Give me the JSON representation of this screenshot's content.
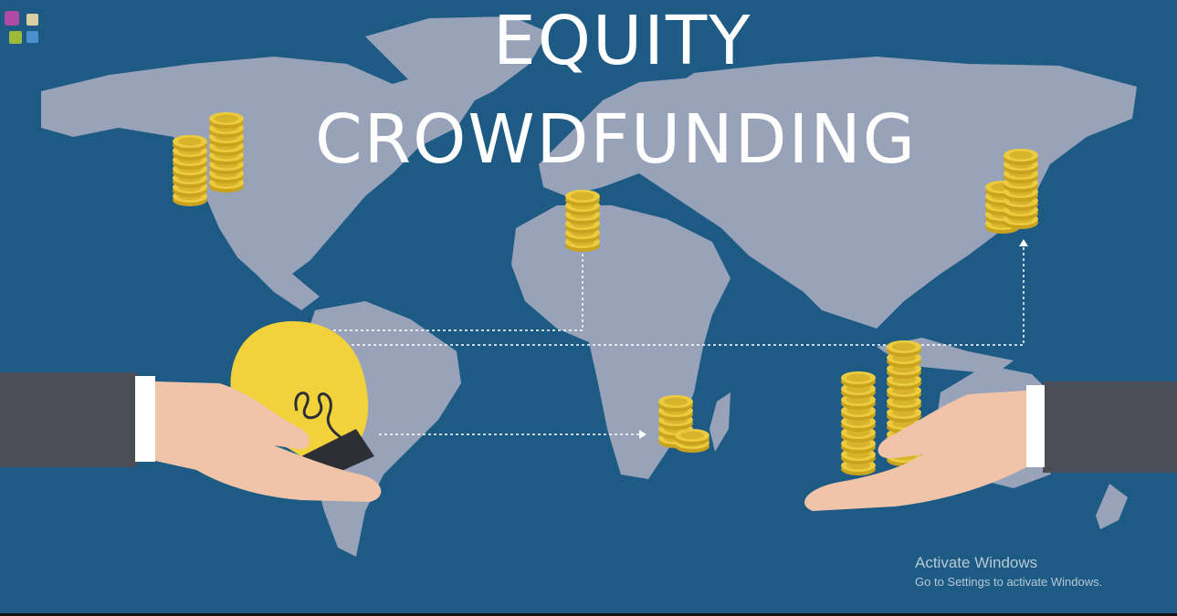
{
  "title": {
    "line1": "EQUITY",
    "line2": "CROWDFUNDING"
  },
  "watermark": {
    "heading": "Activate Windows",
    "subtext": "Go to Settings to activate Windows."
  },
  "icons": [
    "app-logo-icon",
    "light-bulb-icon",
    "coin-stack-icon",
    "hand-icon",
    "world-map"
  ],
  "colors": {
    "background": "#1d5b85",
    "map": "#98a2b8",
    "coin": "#e8c83a",
    "bulb": "#f2d23b",
    "hand": "#f0c4a8",
    "sleeve": "#4a4d56"
  }
}
